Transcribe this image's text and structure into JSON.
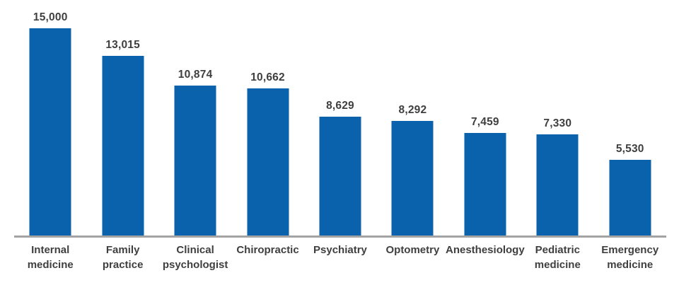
{
  "chart_data": {
    "type": "bar",
    "title": "",
    "categories": [
      "Internal medicine",
      "Family practice",
      "Clinical psychologist",
      "Chiropractic",
      "Psychiatry",
      "Optometry",
      "Anesthesiology",
      "Pediatric medicine",
      "Emergency medicine"
    ],
    "category_lines": [
      [
        "Internal",
        "medicine"
      ],
      [
        "Family",
        "practice"
      ],
      [
        "Clinical",
        "psychologist"
      ],
      [
        "Chiropractic"
      ],
      [
        "Psychiatry"
      ],
      [
        "Optometry"
      ],
      [
        "Anesthesiology"
      ],
      [
        "Pediatric",
        "medicine"
      ],
      [
        "Emergency",
        "medicine"
      ]
    ],
    "values": [
      15000,
      13015,
      10874,
      10662,
      8629,
      8292,
      7459,
      7330,
      5530
    ],
    "value_labels": [
      "15,000",
      "13,015",
      "10,874",
      "10,662",
      "8,629",
      "8,292",
      "7,459",
      "7,330",
      "5,530"
    ],
    "xlabel": "",
    "ylabel": "",
    "ylim": [
      0,
      15000
    ],
    "grid": false,
    "legend": "none",
    "y_axis_visible": false,
    "bar_color": "#0A61AC",
    "label_color": "#3F3F3F",
    "axis_color": "#A3A3A3"
  }
}
